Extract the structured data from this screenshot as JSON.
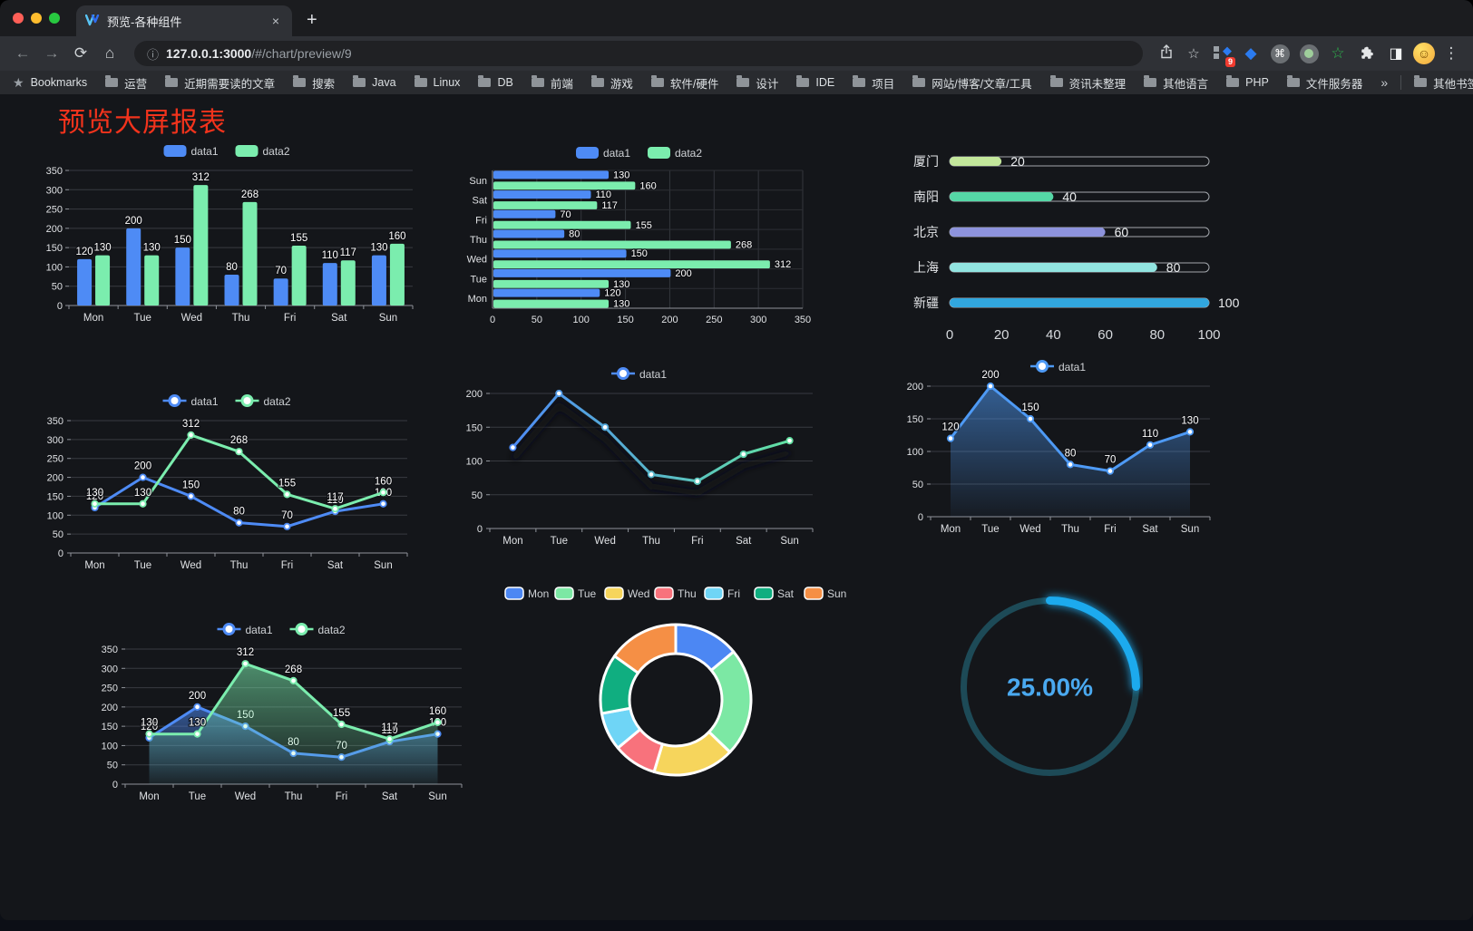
{
  "browser": {
    "tab_title": "预览-各种组件",
    "tab_close": "×",
    "new_tab": "+",
    "back": "←",
    "forward": "→",
    "reload": "⟳",
    "home": "⌂",
    "info": "ⓘ",
    "url_host": "127.0.0.1:3000",
    "url_path": "/#/chart/preview/9",
    "star": "☆",
    "menu": "⋮",
    "command_glyph": "⌘",
    "gem_glyph": "◆",
    "green_star_glyph": "☆",
    "sidebar_glyph": "◨",
    "avatar_glyph": "☺",
    "extension_badge": "9",
    "bookmarks_label": "Bookmarks",
    "bookmarks": [
      "运营",
      "近期需要读的文章",
      "搜索",
      "Java",
      "Linux",
      "DB",
      "前端",
      "游戏",
      "软件/硬件",
      "设计",
      "IDE",
      "项目",
      "网站/博客/文章/工具",
      "资讯未整理",
      "其他语言",
      "PHP",
      "文件服务器"
    ],
    "overflow_chevron": "»",
    "other_bookmarks": "其他书签"
  },
  "page": {
    "title": "预览大屏报表"
  },
  "chart_data": [
    {
      "id": "grouped-bar",
      "type": "bar",
      "legend_position": "top",
      "grid": true,
      "value_labels": true,
      "categories": [
        "Mon",
        "Tue",
        "Wed",
        "Thu",
        "Fri",
        "Sat",
        "Sun"
      ],
      "series": [
        {
          "name": "data1",
          "color": "#4e8bf5",
          "values": [
            120,
            200,
            150,
            80,
            70,
            110,
            130
          ]
        },
        {
          "name": "data2",
          "color": "#7bedae",
          "values": [
            130,
            130,
            312,
            268,
            155,
            117,
            160
          ]
        }
      ],
      "ylim": [
        0,
        350
      ],
      "ytick": 50
    },
    {
      "id": "horizontal-bar",
      "type": "bar-horizontal",
      "legend_position": "top",
      "grid": true,
      "value_labels": true,
      "categories": [
        "Mon",
        "Tue",
        "Wed",
        "Thu",
        "Fri",
        "Sat",
        "Sun"
      ],
      "series": [
        {
          "name": "data1",
          "color": "#4e8bf5",
          "values": [
            120,
            200,
            150,
            80,
            70,
            110,
            130
          ]
        },
        {
          "name": "data2",
          "color": "#7bedae",
          "values": [
            130,
            130,
            312,
            268,
            155,
            117,
            160
          ]
        }
      ],
      "xlim": [
        0,
        350
      ],
      "xtick": 50
    },
    {
      "id": "capsule-bar",
      "type": "bar-capsule",
      "categories": [
        "厦门",
        "南阳",
        "北京",
        "上海",
        "新疆"
      ],
      "values": [
        20,
        40,
        60,
        80,
        100
      ],
      "colors": [
        "#c3e79b",
        "#55d7a6",
        "#8d93dc",
        "#92e5e1",
        "#31a6de"
      ],
      "xlim": [
        0,
        100
      ],
      "xticks": [
        0,
        20,
        40,
        60,
        80,
        100
      ]
    },
    {
      "id": "line-two-series",
      "type": "line",
      "legend_position": "top",
      "grid": true,
      "value_labels": true,
      "categories": [
        "Mon",
        "Tue",
        "Wed",
        "Thu",
        "Fri",
        "Sat",
        "Sun"
      ],
      "series": [
        {
          "name": "data1",
          "color": "#4e8bf5",
          "values": [
            120,
            200,
            150,
            80,
            70,
            110,
            130
          ]
        },
        {
          "name": "data2",
          "color": "#7bedae",
          "values": [
            130,
            130,
            312,
            268,
            155,
            117,
            160
          ]
        }
      ],
      "ylim": [
        0,
        350
      ],
      "ytick": 50
    },
    {
      "id": "gradient-line",
      "type": "line",
      "legend_position": "top",
      "grid": true,
      "value_labels": false,
      "shadow": true,
      "categories": [
        "Mon",
        "Tue",
        "Wed",
        "Thu",
        "Fri",
        "Sat",
        "Sun"
      ],
      "series": [
        {
          "name": "data1",
          "gradient": [
            "#4e8bf5",
            "#62e2a2"
          ],
          "values": [
            120,
            200,
            150,
            80,
            70,
            110,
            130
          ]
        }
      ],
      "ylim": [
        0,
        200
      ],
      "ytick": 50
    },
    {
      "id": "area-line",
      "type": "line",
      "legend_position": "top",
      "grid": true,
      "value_labels": true,
      "categories": [
        "Mon",
        "Tue",
        "Wed",
        "Thu",
        "Fri",
        "Sat",
        "Sun"
      ],
      "series": [
        {
          "name": "data1",
          "color": "#4e9af5",
          "area": true,
          "values": [
            120,
            200,
            150,
            80,
            70,
            110,
            130
          ]
        }
      ],
      "ylim": [
        0,
        200
      ],
      "ytick": 50
    },
    {
      "id": "two-area-line",
      "type": "line",
      "legend_position": "top",
      "grid": true,
      "value_labels": true,
      "categories": [
        "Mon",
        "Tue",
        "Wed",
        "Thu",
        "Fri",
        "Sat",
        "Sun"
      ],
      "series": [
        {
          "name": "data1",
          "color": "#4e8bf5",
          "area": true,
          "values": [
            120,
            200,
            150,
            80,
            70,
            110,
            130
          ]
        },
        {
          "name": "data2",
          "color": "#7bedae",
          "area": true,
          "values": [
            130,
            130,
            312,
            268,
            155,
            117,
            160
          ]
        }
      ],
      "ylim": [
        0,
        350
      ],
      "ytick": 50
    },
    {
      "id": "donut-pie",
      "type": "pie",
      "donut": true,
      "legend_position": "top",
      "categories": [
        "Mon",
        "Tue",
        "Wed",
        "Thu",
        "Fri",
        "Sat",
        "Sun"
      ],
      "values": [
        120,
        200,
        150,
        80,
        70,
        110,
        130
      ],
      "colors": [
        "#4c87f3",
        "#7ce8a4",
        "#f6d55c",
        "#f8727c",
        "#6fd5f6",
        "#10ae80",
        "#f58f45"
      ]
    },
    {
      "id": "gauge",
      "type": "gauge",
      "value": 25,
      "label": "25.00%",
      "color": "#1caaee",
      "track_color": "#1d4a57",
      "text_color": "#4aa9f0"
    }
  ]
}
